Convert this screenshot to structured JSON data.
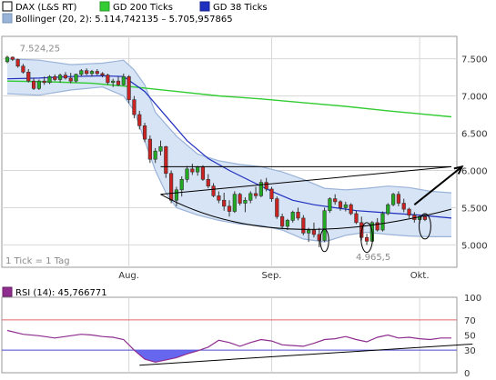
{
  "chart_data": [
    {
      "type": "line",
      "subtype": "candlestick",
      "legend": [
        {
          "label": "DAX (L&S RT)",
          "color": "#000000"
        },
        {
          "label": "GD 200 Ticks",
          "color": "#33cc33"
        },
        {
          "label": "GD 38 Ticks",
          "color": "#1f2fbf"
        },
        {
          "label": "Bollinger (20, 2): 5.114,742135 – 5.705,957865",
          "color": "#9ab3d8"
        }
      ],
      "legend_position": "top-left",
      "footnote": "1 Tick = 1 Tag",
      "annotations": [
        {
          "text": "7.524,25",
          "x": 2,
          "y": 7524.25
        },
        {
          "text": "4.965,5",
          "x": 68,
          "y": 4965.5
        }
      ],
      "x_ticks": [
        {
          "label": "Aug.",
          "x": 23
        },
        {
          "label": "Sep.",
          "x": 50
        },
        {
          "label": "Okt.",
          "x": 78
        }
      ],
      "xlim": [
        0,
        84
      ],
      "y_ticks": [
        "7.500",
        "7.000",
        "6.500",
        "6.000",
        "5.500",
        "5.000"
      ],
      "ylim": [
        4700,
        7800
      ],
      "grid": true,
      "colors": {
        "up": "#22aa22",
        "down": "#cc2222",
        "band": "#d6e4f5",
        "band_line": "#9ab3d8"
      },
      "ohlc": [
        [
          7460,
          7540,
          7440,
          7520
        ],
        [
          7520,
          7530,
          7470,
          7490
        ],
        [
          7490,
          7500,
          7380,
          7400
        ],
        [
          7400,
          7430,
          7300,
          7320
        ],
        [
          7320,
          7360,
          7180,
          7200
        ],
        [
          7200,
          7240,
          7080,
          7100
        ],
        [
          7100,
          7220,
          7080,
          7200
        ],
        [
          7200,
          7260,
          7150,
          7180
        ],
        [
          7180,
          7280,
          7160,
          7260
        ],
        [
          7260,
          7290,
          7200,
          7220
        ],
        [
          7220,
          7300,
          7180,
          7280
        ],
        [
          7280,
          7320,
          7220,
          7240
        ],
        [
          7240,
          7310,
          7170,
          7200
        ],
        [
          7200,
          7300,
          7180,
          7290
        ],
        [
          7290,
          7360,
          7260,
          7340
        ],
        [
          7340,
          7370,
          7280,
          7300
        ],
        [
          7300,
          7350,
          7260,
          7330
        ],
        [
          7330,
          7360,
          7280,
          7300
        ],
        [
          7300,
          7320,
          7250,
          7280
        ],
        [
          7280,
          7300,
          7150,
          7180
        ],
        [
          7180,
          7230,
          7120,
          7200
        ],
        [
          7200,
          7260,
          7130,
          7150
        ],
        [
          7150,
          7300,
          7140,
          7260
        ],
        [
          7260,
          7280,
          6900,
          6950
        ],
        [
          6950,
          7000,
          6700,
          6750
        ],
        [
          6750,
          6800,
          6550,
          6600
        ],
        [
          6600,
          6640,
          6380,
          6420
        ],
        [
          6420,
          6470,
          6100,
          6150
        ],
        [
          6150,
          6300,
          6100,
          6260
        ],
        [
          6260,
          6400,
          6200,
          6320
        ],
        [
          6320,
          6330,
          5900,
          5960
        ],
        [
          5960,
          6000,
          5560,
          5600
        ],
        [
          5600,
          5780,
          5520,
          5740
        ],
        [
          5740,
          5920,
          5650,
          5880
        ],
        [
          5880,
          6060,
          5840,
          6020
        ],
        [
          6020,
          6090,
          5940,
          5980
        ],
        [
          5980,
          6060,
          5930,
          6050
        ],
        [
          6050,
          6070,
          5860,
          5880
        ],
        [
          5880,
          5950,
          5760,
          5790
        ],
        [
          5790,
          5830,
          5640,
          5660
        ],
        [
          5660,
          5720,
          5560,
          5600
        ],
        [
          5600,
          5700,
          5460,
          5520
        ],
        [
          5520,
          5600,
          5380,
          5450
        ],
        [
          5450,
          5720,
          5430,
          5680
        ],
        [
          5680,
          5700,
          5530,
          5560
        ],
        [
          5560,
          5640,
          5440,
          5600
        ],
        [
          5600,
          5720,
          5560,
          5690
        ],
        [
          5690,
          5780,
          5620,
          5660
        ],
        [
          5660,
          5880,
          5640,
          5840
        ],
        [
          5840,
          5900,
          5720,
          5750
        ],
        [
          5750,
          5780,
          5580,
          5620
        ],
        [
          5620,
          5650,
          5350,
          5380
        ],
        [
          5380,
          5420,
          5220,
          5250
        ],
        [
          5250,
          5350,
          5200,
          5330
        ],
        [
          5330,
          5460,
          5300,
          5440
        ],
        [
          5440,
          5500,
          5330,
          5360
        ],
        [
          5360,
          5400,
          5130,
          5160
        ],
        [
          5160,
          5230,
          5040,
          5200
        ],
        [
          5200,
          5300,
          5100,
          5140
        ],
        [
          5140,
          5230,
          4970,
          5060
        ],
        [
          5060,
          5500,
          5040,
          5460
        ],
        [
          5460,
          5640,
          5430,
          5620
        ],
        [
          5620,
          5680,
          5540,
          5580
        ],
        [
          5580,
          5600,
          5460,
          5500
        ],
        [
          5500,
          5580,
          5450,
          5540
        ],
        [
          5540,
          5560,
          5400,
          5420
        ],
        [
          5420,
          5460,
          5280,
          5300
        ],
        [
          5300,
          5380,
          5060,
          5100
        ],
        [
          5100,
          5150,
          5000,
          5050
        ],
        [
          5050,
          5320,
          5040,
          5300
        ],
        [
          5300,
          5360,
          5180,
          5200
        ],
        [
          5200,
          5450,
          5180,
          5420
        ],
        [
          5420,
          5560,
          5400,
          5540
        ],
        [
          5540,
          5700,
          5520,
          5680
        ],
        [
          5680,
          5720,
          5520,
          5560
        ],
        [
          5560,
          5620,
          5440,
          5480
        ],
        [
          5480,
          5500,
          5360,
          5400
        ],
        [
          5400,
          5440,
          5300,
          5340
        ],
        [
          5340,
          5400,
          5290,
          5380
        ],
        [
          5380,
          5420,
          5320,
          5340
        ]
      ],
      "gd200": [
        [
          0,
          7200
        ],
        [
          8,
          7190
        ],
        [
          16,
          7170
        ],
        [
          24,
          7120
        ],
        [
          32,
          7060
        ],
        [
          40,
          7000
        ],
        [
          48,
          6960
        ],
        [
          56,
          6910
        ],
        [
          64,
          6860
        ],
        [
          72,
          6800
        ],
        [
          84,
          6720
        ]
      ],
      "gd38": [
        [
          0,
          7230
        ],
        [
          6,
          7240
        ],
        [
          12,
          7260
        ],
        [
          18,
          7270
        ],
        [
          22,
          7260
        ],
        [
          26,
          7060
        ],
        [
          30,
          6730
        ],
        [
          34,
          6400
        ],
        [
          38,
          6160
        ],
        [
          42,
          6000
        ],
        [
          46,
          5860
        ],
        [
          50,
          5720
        ],
        [
          54,
          5600
        ],
        [
          58,
          5540
        ],
        [
          62,
          5500
        ],
        [
          66,
          5460
        ],
        [
          70,
          5440
        ],
        [
          74,
          5420
        ],
        [
          78,
          5400
        ],
        [
          84,
          5360
        ]
      ],
      "bollinger_upper": [
        [
          0,
          7500
        ],
        [
          6,
          7480
        ],
        [
          12,
          7420
        ],
        [
          18,
          7440
        ],
        [
          22,
          7480
        ],
        [
          24,
          7350
        ],
        [
          26,
          7150
        ],
        [
          28,
          6780
        ],
        [
          32,
          6460
        ],
        [
          36,
          6220
        ],
        [
          40,
          6130
        ],
        [
          44,
          6080
        ],
        [
          48,
          6050
        ],
        [
          52,
          5980
        ],
        [
          56,
          5880
        ],
        [
          60,
          5760
        ],
        [
          64,
          5740
        ],
        [
          68,
          5760
        ],
        [
          72,
          5790
        ],
        [
          76,
          5770
        ],
        [
          80,
          5720
        ],
        [
          84,
          5700
        ]
      ],
      "bollinger_lower": [
        [
          0,
          7030
        ],
        [
          6,
          7010
        ],
        [
          12,
          7080
        ],
        [
          18,
          7120
        ],
        [
          22,
          7000
        ],
        [
          24,
          6800
        ],
        [
          26,
          6400
        ],
        [
          28,
          6000
        ],
        [
          30,
          5700
        ],
        [
          32,
          5500
        ],
        [
          36,
          5400
        ],
        [
          40,
          5330
        ],
        [
          44,
          5280
        ],
        [
          48,
          5260
        ],
        [
          52,
          5200
        ],
        [
          56,
          5080
        ],
        [
          60,
          5040
        ],
        [
          64,
          5130
        ],
        [
          68,
          5170
        ],
        [
          72,
          5140
        ],
        [
          76,
          5120
        ],
        [
          80,
          5110
        ],
        [
          84,
          5110
        ]
      ],
      "trendlines": [
        {
          "from": [
            29,
            6050
          ],
          "to": [
            84,
            6050
          ]
        },
        {
          "from": [
            29,
            5680
          ],
          "to": [
            84,
            6050
          ]
        },
        {
          "from": [
            29,
            5680
          ],
          "to": [
            50,
            5100
          ],
          "curve_to": [
            84,
            5480
          ],
          "curved": true
        }
      ],
      "arrows": [
        {
          "from": [
            77,
            5540
          ],
          "to": [
            86,
            6050
          ]
        }
      ],
      "ellipses": [
        {
          "cx": 60,
          "cy": 5060,
          "rx": 0.8,
          "ry": 150
        },
        {
          "cx": 68,
          "cy": 5100,
          "rx": 1.1,
          "ry": 200
        },
        {
          "cx": 79,
          "cy": 5250,
          "rx": 1.1,
          "ry": 170
        }
      ]
    },
    {
      "type": "line",
      "legend": [
        {
          "label": "RSI (14): 45,766771",
          "color": "#8e2d8e"
        }
      ],
      "y_ticks": [
        "100",
        "70",
        "50",
        "30",
        "0"
      ],
      "ylim": [
        0,
        100
      ],
      "levels": [
        {
          "value": 70,
          "color": "#e06a6a"
        },
        {
          "value": 30,
          "color": "#4a4ad0"
        }
      ],
      "rsi": [
        [
          0,
          56
        ],
        [
          3,
          51
        ],
        [
          6,
          49
        ],
        [
          9,
          46
        ],
        [
          12,
          49
        ],
        [
          14,
          51
        ],
        [
          16,
          50
        ],
        [
          18,
          48
        ],
        [
          20,
          47
        ],
        [
          22,
          44
        ],
        [
          24,
          30
        ],
        [
          26,
          18
        ],
        [
          28,
          14
        ],
        [
          30,
          17
        ],
        [
          32,
          20
        ],
        [
          34,
          25
        ],
        [
          36,
          29
        ],
        [
          38,
          34
        ],
        [
          40,
          43
        ],
        [
          42,
          40
        ],
        [
          44,
          35
        ],
        [
          46,
          40
        ],
        [
          48,
          44
        ],
        [
          50,
          42
        ],
        [
          52,
          37
        ],
        [
          54,
          36
        ],
        [
          56,
          35
        ],
        [
          58,
          39
        ],
        [
          60,
          44
        ],
        [
          62,
          45
        ],
        [
          64,
          48
        ],
        [
          66,
          44
        ],
        [
          68,
          41
        ],
        [
          70,
          47
        ],
        [
          72,
          50
        ],
        [
          74,
          46
        ],
        [
          76,
          47
        ],
        [
          78,
          45
        ],
        [
          80,
          44
        ],
        [
          82,
          46
        ],
        [
          84,
          46
        ]
      ],
      "trendline": {
        "from": [
          25,
          10
        ],
        "to": [
          88,
          38
        ]
      },
      "colors": {
        "line": "#8e2d8e",
        "fill": "#6666ee"
      }
    }
  ]
}
